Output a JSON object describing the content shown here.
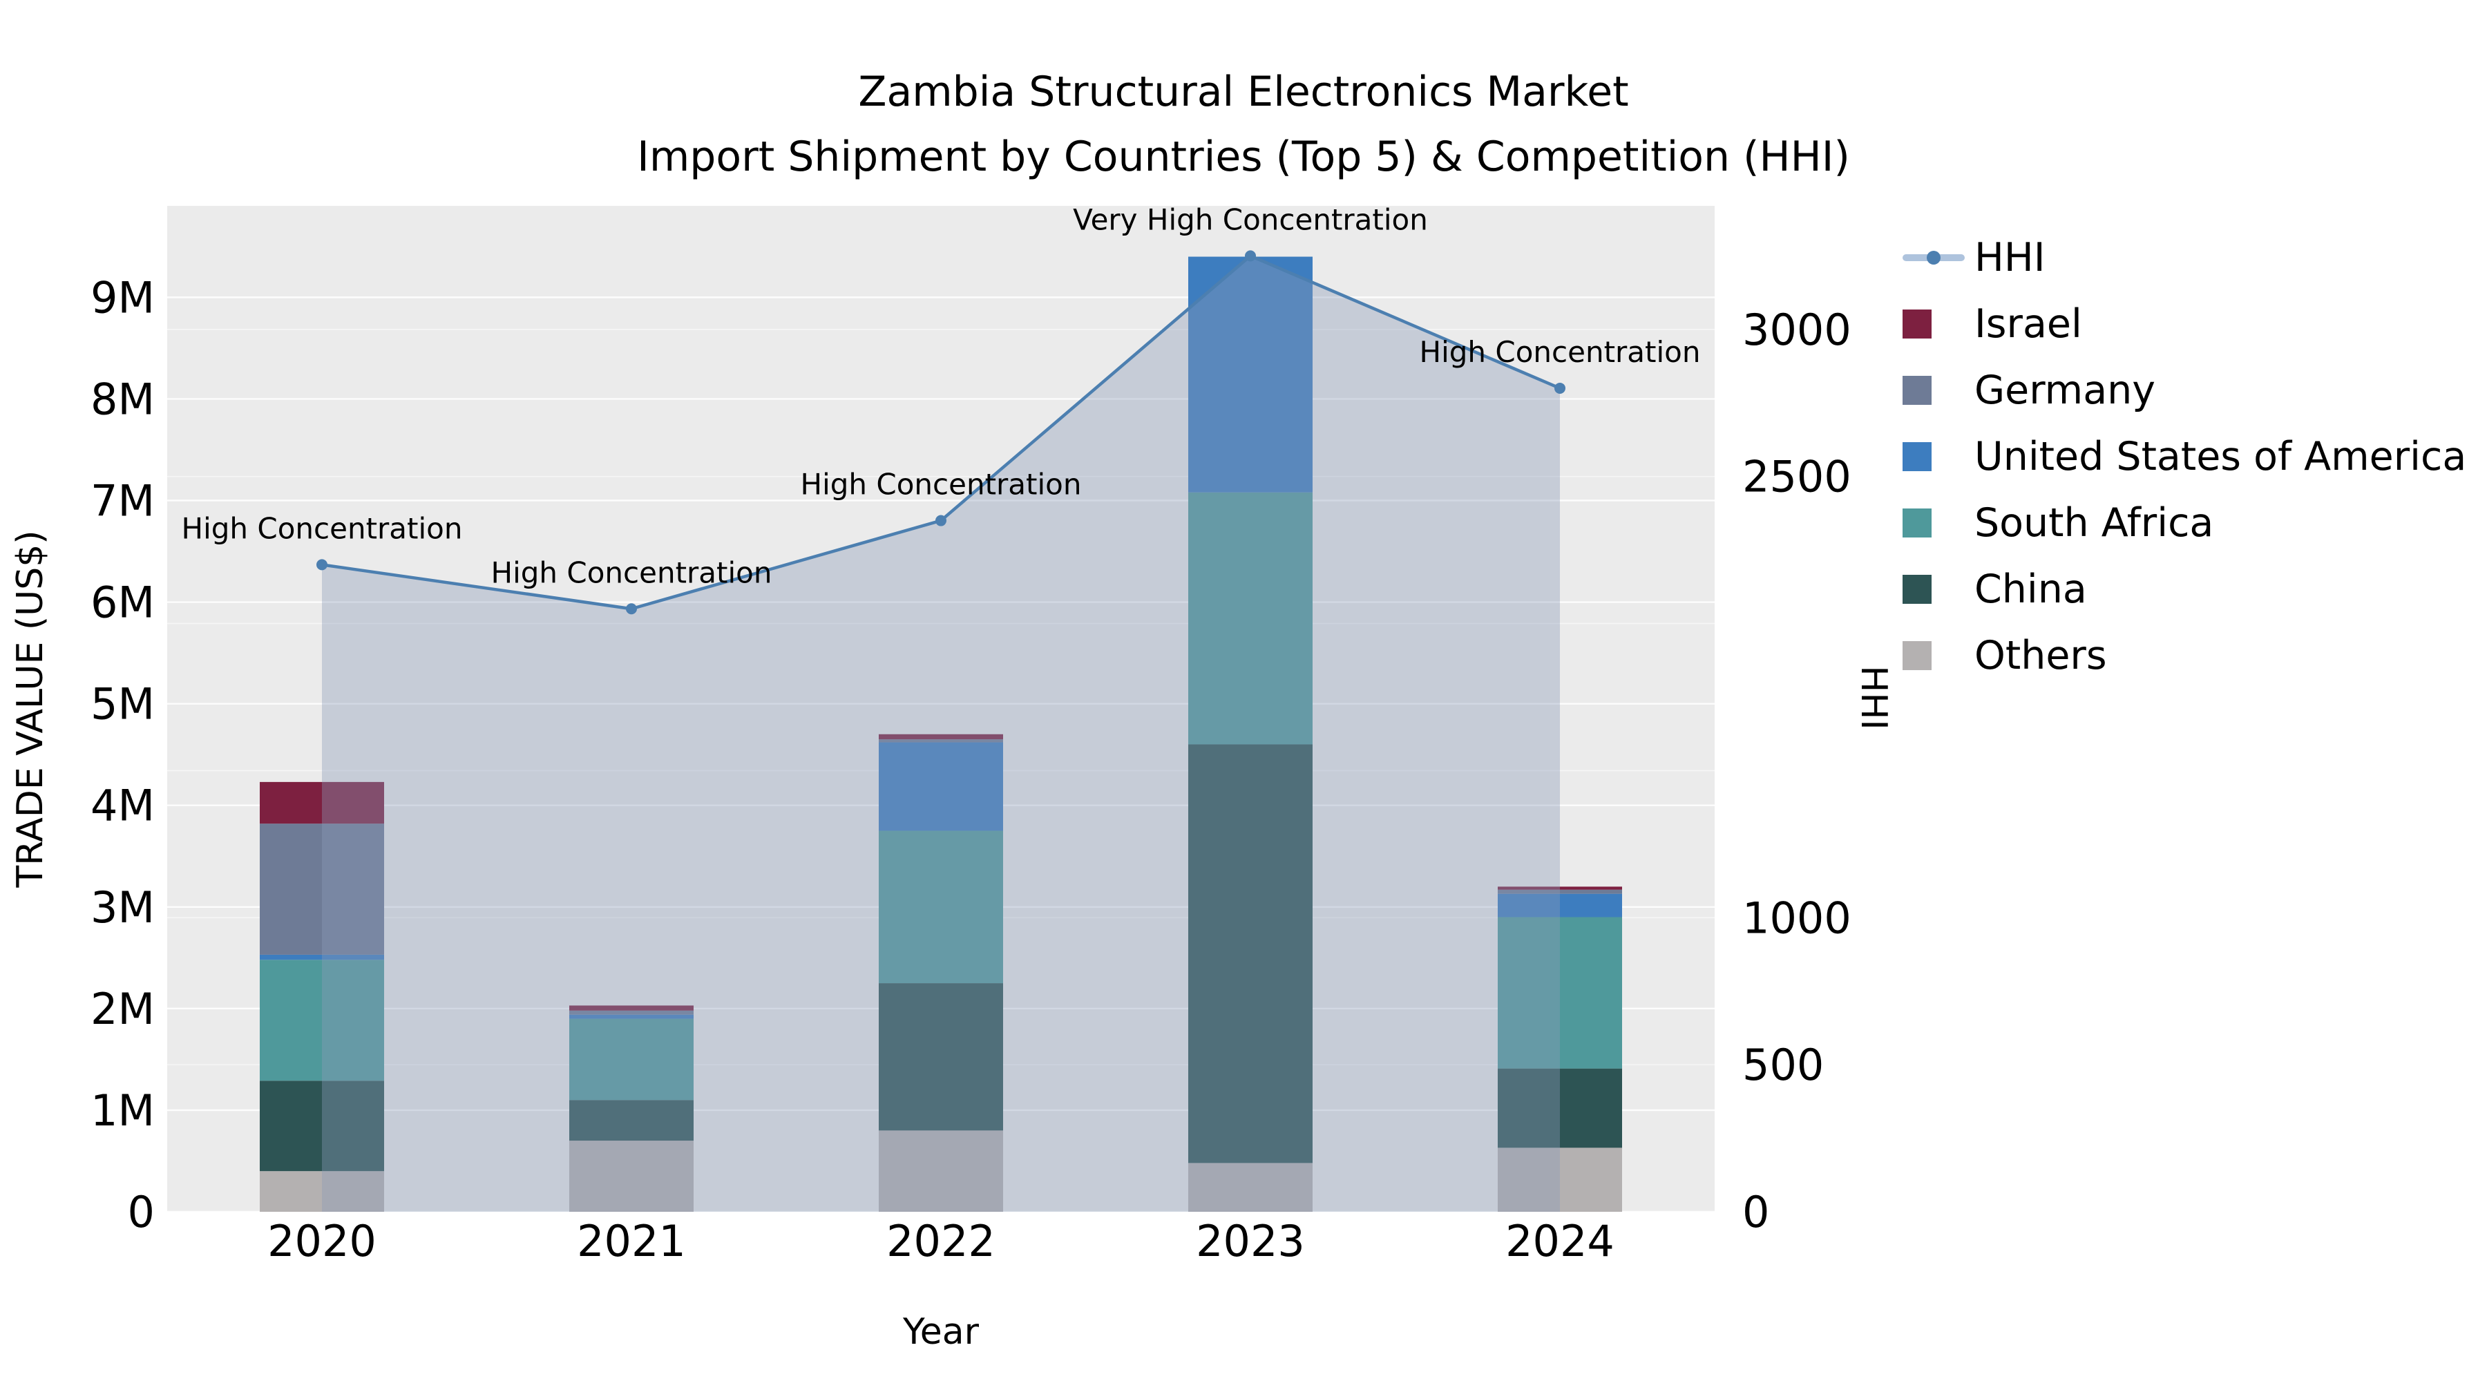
{
  "title": {
    "line1": "Zambia Structural Electronics Market",
    "line2": "Import Shipment by Countries (Top 5) & Competition (HHI)"
  },
  "axis_titles": {
    "x": "Year",
    "y_left": "TRADE VALUE (US$)",
    "y_right": "HHI"
  },
  "colors": {
    "page_bg": "#ffffff",
    "plot_bg": "#ebebeb",
    "grid_major": "#ffffff",
    "grid_minor": "#ffffff",
    "text": "#000000",
    "hhi_line": "#4c7fb0",
    "hhi_fill": "#8b9cb8",
    "hhi_fill_opacity": 0.38,
    "series": {
      "Others": "#b4b1b1",
      "China": "#2d5454",
      "South Africa": "#4f999b",
      "United States of America": "#3d7dbf",
      "Germany": "#6e7b96",
      "Israel": "#7d2040"
    }
  },
  "legend": {
    "items": [
      {
        "label": "HHI",
        "type": "line"
      },
      {
        "label": "Israel",
        "type": "swatch"
      },
      {
        "label": "Germany",
        "type": "swatch"
      },
      {
        "label": "United States of America",
        "type": "swatch"
      },
      {
        "label": "South Africa",
        "type": "swatch"
      },
      {
        "label": "China",
        "type": "swatch"
      },
      {
        "label": "Others",
        "type": "swatch"
      }
    ]
  },
  "chart_data": {
    "type": "bar",
    "subtype": "stacked-bars-with-line-overlay",
    "title": "Zambia Structural Electronics Market — Import Shipment by Countries (Top 5) & Competition (HHI)",
    "xlabel": "Year",
    "ylabel_left": "TRADE VALUE (US$)",
    "ylabel_right": "HHI",
    "categories": [
      "2020",
      "2021",
      "2022",
      "2023",
      "2024"
    ],
    "value_unit": "million US$",
    "stack_order_note": "series listed bottom to top",
    "series": [
      {
        "name": "Others",
        "values": [
          0.4,
          0.7,
          0.8,
          0.48,
          0.63
        ]
      },
      {
        "name": "China",
        "values": [
          0.89,
          0.4,
          1.45,
          4.12,
          0.78
        ]
      },
      {
        "name": "South Africa",
        "values": [
          1.19,
          0.8,
          1.5,
          2.48,
          1.49
        ]
      },
      {
        "name": "United States of America",
        "values": [
          0.05,
          0.04,
          0.87,
          2.32,
          0.23
        ]
      },
      {
        "name": "Germany",
        "values": [
          1.29,
          0.04,
          0.03,
          0.0,
          0.04
        ]
      },
      {
        "name": "Israel",
        "values": [
          0.41,
          0.05,
          0.05,
          0.0,
          0.03
        ]
      }
    ],
    "line_series": {
      "name": "HHI",
      "axis": "right",
      "values": [
        2200,
        2050,
        2350,
        3250,
        2800
      ],
      "area_fill": true
    },
    "annotations": [
      {
        "category": "2020",
        "text": "High Concentration"
      },
      {
        "category": "2021",
        "text": "High Concentration"
      },
      {
        "category": "2022",
        "text": "High Concentration"
      },
      {
        "category": "2023",
        "text": "Very High Concentration"
      },
      {
        "category": "2024",
        "text": "High Concentration"
      }
    ],
    "y_left": {
      "max": 9.9,
      "ticks": [
        {
          "v": 0,
          "label": "0"
        },
        {
          "v": 1,
          "label": "1M"
        },
        {
          "v": 2,
          "label": "2M"
        },
        {
          "v": 3,
          "label": "3M"
        },
        {
          "v": 4,
          "label": "4M"
        },
        {
          "v": 5,
          "label": "5M"
        },
        {
          "v": 6,
          "label": "6M"
        },
        {
          "v": 7,
          "label": "7M"
        },
        {
          "v": 8,
          "label": "8M"
        },
        {
          "v": 9,
          "label": "9M"
        }
      ]
    },
    "y_right": {
      "max": 3420,
      "ticks": [
        {
          "v": 0,
          "label": "0"
        },
        {
          "v": 500,
          "label": "500"
        },
        {
          "v": 1000,
          "label": "1000"
        },
        {
          "v": 2500,
          "label": "2500"
        },
        {
          "v": 3000,
          "label": "3000"
        }
      ],
      "grid_values": [
        500,
        1000,
        1500,
        2000,
        2500,
        3000
      ]
    },
    "grid": true,
    "legend_position": "right"
  }
}
